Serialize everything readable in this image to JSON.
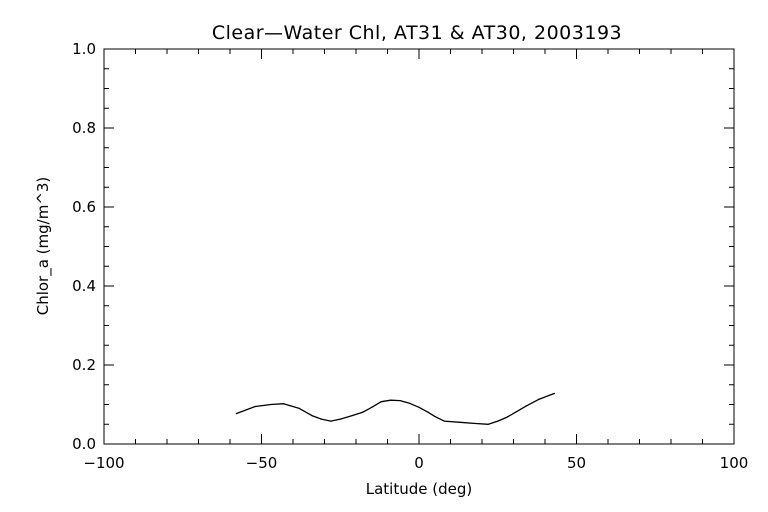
{
  "chart_data": {
    "type": "line",
    "title": "Clear—Water Chl, AT31 & AT30, 2003193",
    "xlabel": "Latitude (deg)",
    "ylabel": "Chlor_a (mg/m^3)",
    "xlim": [
      -100,
      100
    ],
    "ylim": [
      0,
      1
    ],
    "x_ticks": [
      -100,
      -50,
      0,
      50,
      100
    ],
    "x_tick_labels": [
      "−100",
      "−50",
      "0",
      "50",
      "100"
    ],
    "y_ticks": [
      0,
      0.2,
      0.4,
      0.6,
      0.8,
      1.0
    ],
    "y_tick_labels": [
      "0.0",
      "0.2",
      "0.4",
      "0.6",
      "0.8",
      "1.0"
    ],
    "x_minor_step": 10,
    "y_minor_step": 0.05,
    "grid": false,
    "color": "#000000",
    "series": [
      {
        "x": [
          -58,
          -52,
          -47,
          -43,
          -38,
          -34,
          -31,
          -28,
          -25,
          -22,
          -18,
          -15,
          -12,
          -9,
          -6,
          -3,
          0,
          3,
          5,
          8,
          13,
          18,
          22,
          25,
          28,
          31,
          34,
          38,
          43
        ],
        "y": [
          0.077,
          0.095,
          0.1,
          0.102,
          0.09,
          0.072,
          0.063,
          0.058,
          0.063,
          0.07,
          0.08,
          0.093,
          0.107,
          0.111,
          0.11,
          0.103,
          0.093,
          0.08,
          0.07,
          0.058,
          0.055,
          0.052,
          0.05,
          0.058,
          0.068,
          0.082,
          0.096,
          0.113,
          0.128
        ]
      }
    ]
  }
}
